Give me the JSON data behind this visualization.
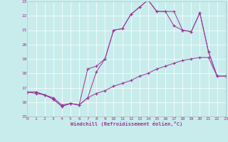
{
  "xlabel": "Windchill (Refroidissement éolien,°C)",
  "xlim": [
    0,
    23
  ],
  "ylim": [
    15,
    23
  ],
  "yticks": [
    15,
    16,
    17,
    18,
    19,
    20,
    21,
    22,
    23
  ],
  "xticks": [
    0,
    1,
    2,
    3,
    4,
    5,
    6,
    7,
    8,
    9,
    10,
    11,
    12,
    13,
    14,
    15,
    16,
    17,
    18,
    19,
    20,
    21,
    22,
    23
  ],
  "background_color": "#c8ecec",
  "grid_color": "#ffffff",
  "line_color": "#993399",
  "line1_x": [
    0,
    1,
    2,
    3,
    4,
    5,
    6,
    7,
    8,
    9,
    10,
    11,
    12,
    13,
    14,
    15,
    16,
    17,
    18,
    19,
    20,
    21,
    22,
    23
  ],
  "line1_y": [
    16.7,
    16.7,
    16.5,
    16.3,
    15.8,
    15.9,
    15.8,
    16.3,
    18.1,
    19.0,
    21.0,
    21.1,
    22.1,
    22.6,
    23.1,
    22.3,
    22.3,
    22.3,
    21.0,
    20.9,
    22.2,
    19.5,
    17.8,
    17.8
  ],
  "line2_x": [
    0,
    1,
    2,
    3,
    4,
    5,
    6,
    7,
    8,
    9,
    10,
    11,
    12,
    13,
    14,
    15,
    16,
    17,
    18,
    19,
    20,
    21,
    22,
    23
  ],
  "line2_y": [
    16.7,
    16.7,
    16.5,
    16.2,
    15.7,
    15.9,
    15.8,
    18.3,
    18.5,
    19.0,
    21.0,
    21.1,
    22.1,
    22.6,
    23.1,
    22.3,
    22.3,
    21.3,
    21.0,
    20.9,
    22.2,
    19.5,
    17.8,
    17.8
  ],
  "line3_x": [
    0,
    1,
    2,
    3,
    4,
    5,
    6,
    7,
    8,
    9,
    10,
    11,
    12,
    13,
    14,
    15,
    16,
    17,
    18,
    19,
    20,
    21,
    22,
    23
  ],
  "line3_y": [
    16.7,
    16.6,
    16.5,
    16.2,
    15.7,
    15.9,
    15.8,
    16.3,
    16.6,
    16.8,
    17.1,
    17.3,
    17.5,
    17.8,
    18.0,
    18.3,
    18.5,
    18.7,
    18.9,
    19.0,
    19.1,
    19.1,
    17.8,
    17.8
  ]
}
